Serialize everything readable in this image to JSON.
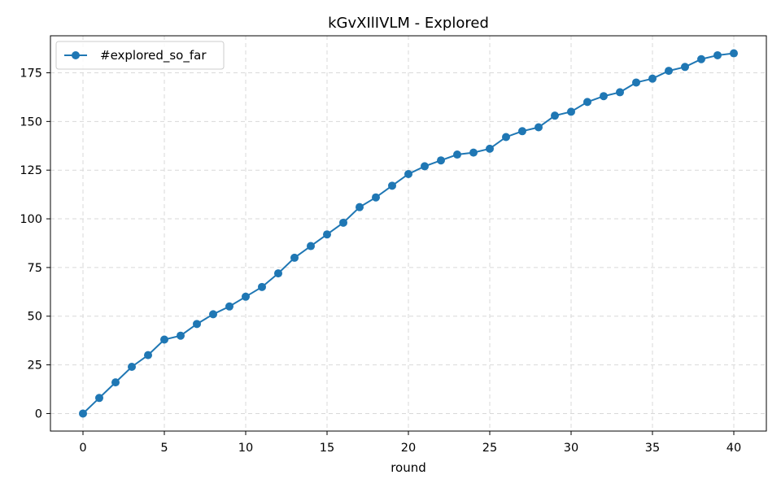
{
  "chart_data": {
    "type": "line",
    "title": "kGvXIlIVLM - Explored",
    "xlabel": "round",
    "ylabel": "",
    "xlim": [
      -2,
      42
    ],
    "ylim": [
      -9,
      194
    ],
    "xticks": [
      0,
      5,
      10,
      15,
      20,
      25,
      30,
      35,
      40
    ],
    "yticks": [
      0,
      25,
      50,
      75,
      100,
      125,
      150,
      175
    ],
    "grid": true,
    "legend_position": "top-left",
    "colors": {
      "series": "#1f77b4",
      "grid": "#d9d9d9",
      "axes": "#000000"
    },
    "series": [
      {
        "name": "#explored_so_far",
        "marker": "circle",
        "x": [
          0,
          1,
          2,
          3,
          4,
          5,
          6,
          7,
          8,
          9,
          10,
          11,
          12,
          13,
          14,
          15,
          16,
          17,
          18,
          19,
          20,
          21,
          22,
          23,
          24,
          25,
          26,
          27,
          28,
          29,
          30,
          31,
          32,
          33,
          34,
          35,
          36,
          37,
          38,
          39,
          40
        ],
        "values": [
          0,
          8,
          16,
          24,
          30,
          38,
          40,
          46,
          51,
          55,
          60,
          65,
          72,
          80,
          86,
          92,
          98,
          106,
          111,
          117,
          123,
          127,
          130,
          133,
          134,
          136,
          142,
          145,
          147,
          153,
          155,
          160,
          163,
          165,
          170,
          172,
          176,
          178,
          182,
          184,
          185
        ]
      }
    ]
  }
}
